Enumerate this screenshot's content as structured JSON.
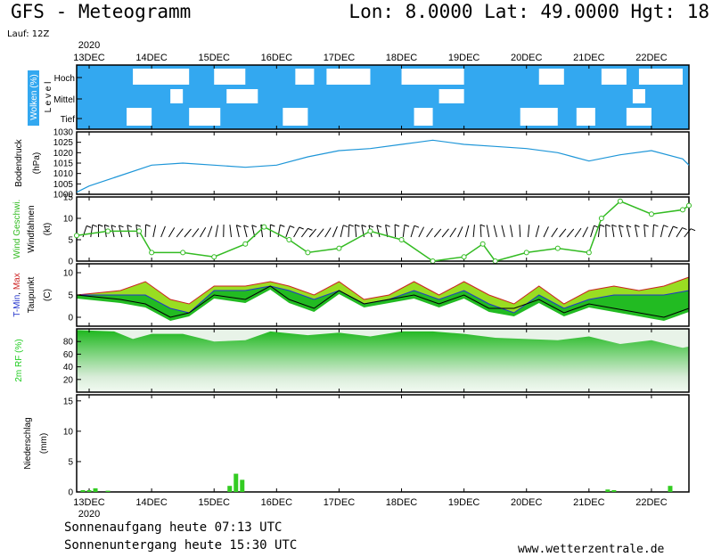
{
  "header": {
    "title": "GFS - Meteogramm",
    "location": "Lon: 8.0000 Lat: 49.0000 Hgt: 18",
    "run": "Lauf: 12Z"
  },
  "footer": {
    "sunrise": "Sonnenaufgang heute 07:13 UTC",
    "sunset": "Sonnenuntergang heute 15:30 UTC",
    "credit": "www.wetterzentrale.de"
  },
  "colors": {
    "cloud": "#33a8f0",
    "pressure": "#1e96d8",
    "wind_speed": "#33bb22",
    "temp_max": "#cc2222",
    "temp_min": "#2233cc",
    "humidity": "#22cc22",
    "precip": "#33cc22"
  },
  "chart_data": {
    "type": "meteogram",
    "year": "2020",
    "date_labels": [
      "13DEC",
      "14DEC",
      "15DEC",
      "16DEC",
      "17DEC",
      "18DEC",
      "19DEC",
      "20DEC",
      "21DEC",
      "22DEC"
    ],
    "x_start_days": -0.2,
    "x_end_days": 9.6,
    "panels": {
      "clouds": {
        "ylabel": "Wolken (%)",
        "ylabel2": "L e v e l",
        "levels": [
          "Hoch",
          "Mittel",
          "Tief"
        ],
        "high_gaps": [
          [
            0.7,
            1.6
          ],
          [
            2.0,
            2.5
          ],
          [
            3.3,
            3.6
          ],
          [
            3.8,
            4.5
          ],
          [
            5.0,
            6.0
          ],
          [
            7.2,
            7.6
          ],
          [
            8.2,
            8.6
          ],
          [
            8.8,
            9.5
          ]
        ],
        "mid_gaps": [
          [
            1.3,
            1.5
          ],
          [
            2.2,
            2.7
          ],
          [
            5.6,
            6.0
          ],
          [
            8.7,
            8.9
          ]
        ],
        "low_gaps": [
          [
            0.6,
            1.0
          ],
          [
            1.6,
            2.1
          ],
          [
            3.1,
            3.5
          ],
          [
            5.2,
            5.5
          ],
          [
            6.9,
            7.5
          ],
          [
            7.8,
            8.1
          ],
          [
            8.6,
            9.0
          ]
        ]
      },
      "pressure": {
        "ylabel": "Bodendruck",
        "unit": "(hPa)",
        "ticks": [
          "1030",
          "1025",
          "1020",
          "1015",
          "1010",
          "1005",
          "1000"
        ],
        "ylim": [
          1000,
          1030
        ],
        "x_days": [
          -0.2,
          0.0,
          0.5,
          1.0,
          1.5,
          2.0,
          2.5,
          3.0,
          3.5,
          4.0,
          4.5,
          5.0,
          5.25,
          5.5,
          6.0,
          6.5,
          7.0,
          7.5,
          7.75,
          8.0,
          8.5,
          9.0,
          9.5,
          9.6
        ],
        "values": [
          1001,
          1004,
          1009,
          1014,
          1015,
          1014,
          1013,
          1014,
          1018,
          1021,
          1022,
          1024,
          1025,
          1026,
          1024,
          1023,
          1022,
          1020,
          1018,
          1016,
          1019,
          1021,
          1017,
          1014
        ]
      },
      "wind": {
        "ylabel": "Wind Geschwi.",
        "ylabel2": "Windfahnen",
        "unit": "(kt)",
        "ticks": [
          "15",
          "10",
          "5",
          "0"
        ],
        "ylim": [
          0,
          15
        ],
        "x_days": [
          -0.2,
          0.3,
          0.8,
          1.0,
          1.5,
          2.0,
          2.5,
          2.8,
          3.2,
          3.5,
          4.0,
          4.5,
          5.0,
          5.5,
          6.0,
          6.3,
          6.5,
          7.0,
          7.5,
          8.0,
          8.2,
          8.5,
          9.0,
          9.5,
          9.6
        ],
        "values": [
          6,
          7,
          7,
          2,
          2,
          1,
          4,
          8,
          5,
          2,
          3,
          7,
          5,
          0,
          1,
          4,
          0,
          2,
          3,
          2,
          10,
          14,
          11,
          12,
          13
        ]
      },
      "temperature": {
        "ylabel_min": "T-Min",
        "ylabel_max": "Max",
        "ylabel2": "Taupunkt",
        "unit": "(C)",
        "ticks": [
          "10",
          "5",
          "0"
        ],
        "ylim": [
          -2,
          12
        ],
        "x_days": [
          -0.2,
          0.5,
          0.9,
          1.3,
          1.6,
          2.0,
          2.5,
          2.9,
          3.2,
          3.6,
          4.0,
          4.4,
          4.8,
          5.2,
          5.6,
          6.0,
          6.4,
          6.8,
          7.2,
          7.6,
          8.0,
          8.4,
          8.8,
          9.2,
          9.6
        ],
        "temp_max": [
          5,
          6,
          8,
          4,
          3,
          7,
          7,
          8,
          7,
          5,
          8,
          4,
          5,
          8,
          5,
          8,
          5,
          3,
          7,
          3,
          6,
          7,
          6,
          7,
          9
        ],
        "temp_min": [
          5,
          5,
          5,
          2,
          1,
          6,
          6,
          7,
          6,
          4,
          6,
          3,
          4,
          6,
          4,
          6,
          3,
          1,
          5,
          2,
          4,
          5,
          5,
          5,
          6
        ],
        "dewpoint": [
          5,
          4,
          3,
          0,
          1,
          5,
          4,
          7,
          4,
          2,
          6,
          3,
          4,
          5,
          3,
          5,
          2,
          2,
          4,
          1,
          3,
          2,
          1,
          0,
          2
        ]
      },
      "humidity": {
        "ylabel": "2m RF (%)",
        "ticks": [
          "80",
          "60",
          "40",
          "20"
        ],
        "ylim": [
          0,
          100
        ],
        "x_days": [
          -0.2,
          0.4,
          0.7,
          1.0,
          1.5,
          2.0,
          2.5,
          2.9,
          3.5,
          4.0,
          4.5,
          5.0,
          5.5,
          6.0,
          6.5,
          7.0,
          7.5,
          8.0,
          8.5,
          9.0,
          9.5,
          9.6
        ],
        "values": [
          98,
          96,
          84,
          92,
          92,
          80,
          82,
          96,
          90,
          94,
          88,
          96,
          96,
          92,
          86,
          84,
          82,
          88,
          76,
          82,
          70,
          72
        ]
      },
      "precipitation": {
        "ylabel": "Niederschlag",
        "unit": "(mm)",
        "ticks": [
          "15",
          "10",
          "5",
          "0"
        ],
        "ylim": [
          0,
          16
        ],
        "bars_days": [
          -0.1,
          0.0,
          0.1,
          0.3,
          2.25,
          2.35,
          2.45,
          8.3,
          8.4,
          9.3
        ],
        "bars_values": [
          0.3,
          0.3,
          0.6,
          0.2,
          1.0,
          3.0,
          2.0,
          0.4,
          0.3,
          1.0
        ]
      }
    }
  }
}
